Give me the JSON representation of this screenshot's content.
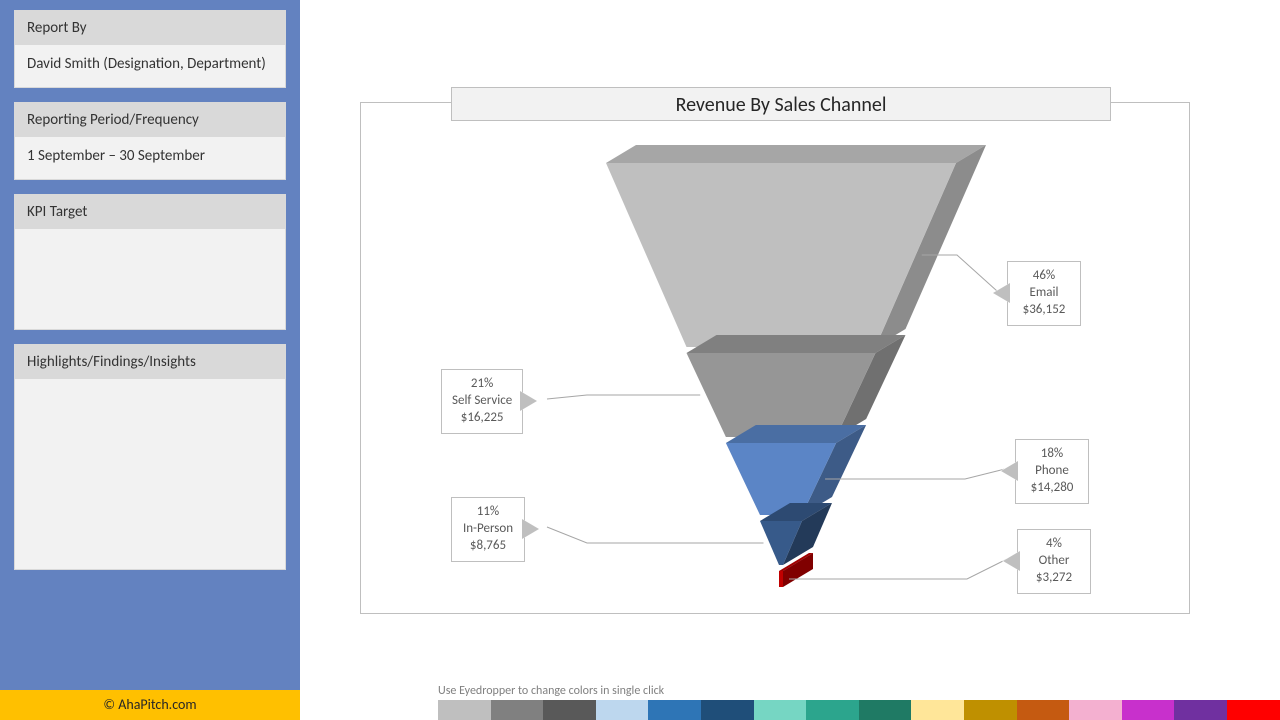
{
  "sidebar": {
    "panels": [
      {
        "header": "Report By",
        "body": "David Smith (Designation, Department)"
      },
      {
        "header": "Reporting Period/Frequency",
        "body": "1 September – 30 September"
      },
      {
        "header": "KPI Target",
        "body": ""
      },
      {
        "header": "Highlights/Findings/Insights",
        "body": ""
      }
    ],
    "background_color": "#6382c0"
  },
  "footer": {
    "text": "© AhaPitch.com",
    "background_color": "#ffc000"
  },
  "chart": {
    "type": "funnel-3d",
    "title": "Revenue By Sales Channel",
    "title_fontsize": 20,
    "border_color": "#bfbfbf",
    "segments": [
      {
        "percent": "46%",
        "label": "Email",
        "value": "$36,152",
        "color_front": "#bfbfbf",
        "color_top": "#a6a6a6",
        "color_side": "#8c8c8c"
      },
      {
        "percent": "21%",
        "label": "Self Service",
        "value": "$16,225",
        "color_front": "#969696",
        "color_top": "#808080",
        "color_side": "#707070"
      },
      {
        "percent": "18%",
        "label": "Phone",
        "value": "$14,280",
        "color_front": "#5b85c6",
        "color_top": "#4a6ea3",
        "color_side": "#3d5b87"
      },
      {
        "percent": "11%",
        "label": "In-Person",
        "value": "$8,765",
        "color_front": "#375a8a",
        "color_top": "#2d4a72",
        "color_side": "#233a59"
      },
      {
        "percent": "4%",
        "label": "Other",
        "value": "$3,272",
        "color_front": "#c00000",
        "color_top": "#a00000",
        "color_side": "#800000"
      }
    ]
  },
  "palette_hint": "Use Eyedropper to change colors in single click",
  "palette": [
    "#bfbfbf",
    "#808080",
    "#595959",
    "#bdd7ee",
    "#2e75b6",
    "#1f4e79",
    "#76d6c3",
    "#2ca58d",
    "#1f7a64",
    "#ffe699",
    "#bf9000",
    "#c55a11",
    "#f4b0d0",
    "#c830cc",
    "#7030a0",
    "#ff0000"
  ]
}
